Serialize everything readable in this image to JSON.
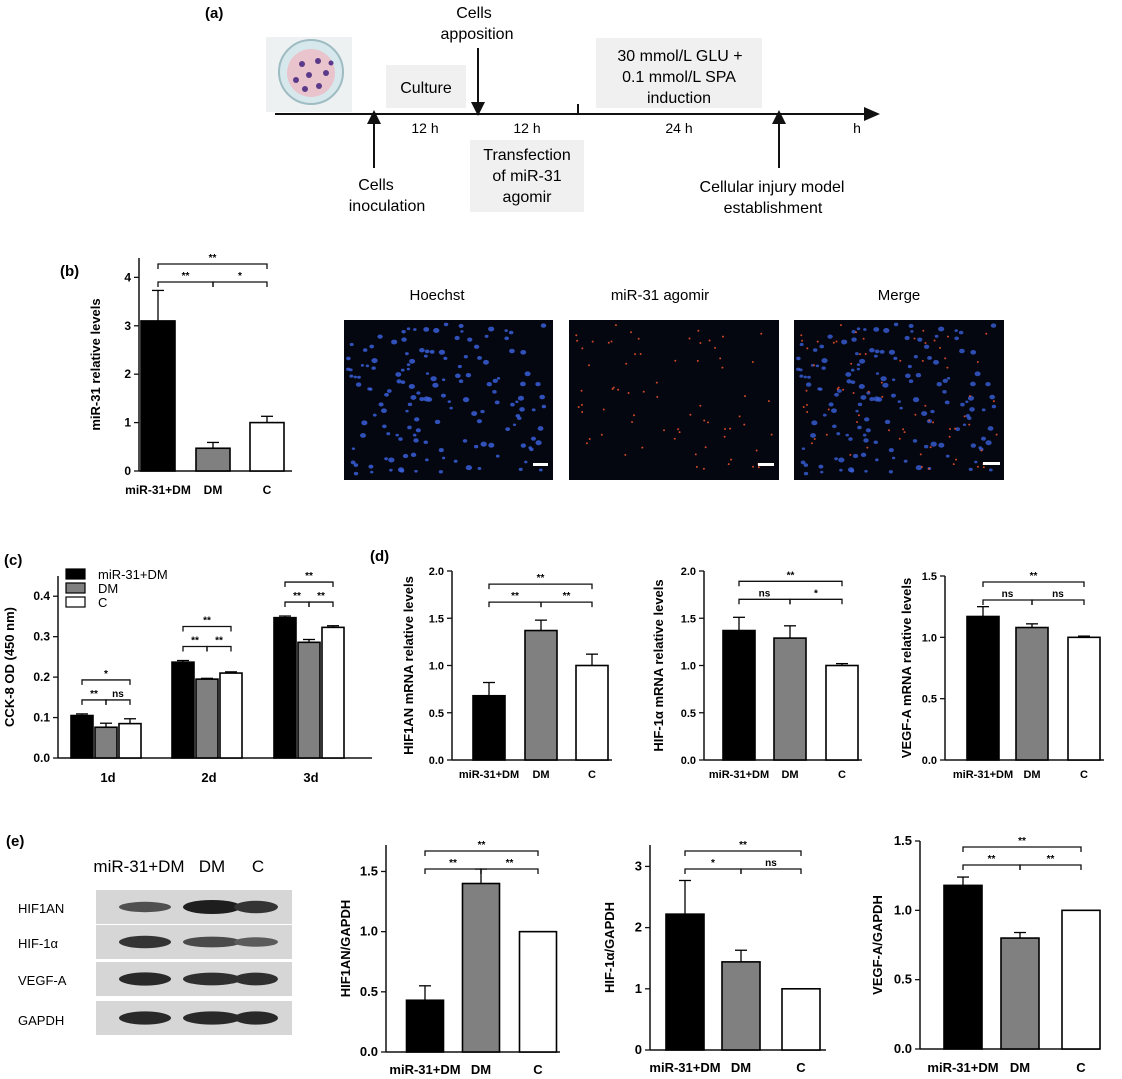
{
  "panel_labels": {
    "a": "(a)",
    "b": "(b)",
    "c": "(c)",
    "d": "(d)",
    "e": "(e)"
  },
  "timeline": {
    "culture": "Culture",
    "cells_apposition": [
      "Cells",
      "apposition"
    ],
    "induction": [
      "30 mmol/L GLU +",
      "0.1 mmol/L SPA",
      "induction"
    ],
    "transfection": [
      "Transfection",
      "of miR-31",
      "agomir"
    ],
    "cells_inoculation": [
      "Cells",
      "inoculation"
    ],
    "injury_model": [
      "Cellular injury model",
      "establishment"
    ],
    "durations": [
      "12 h",
      "12 h",
      "24 h"
    ],
    "unit": "h"
  },
  "images": {
    "titles": [
      "Hoechst",
      "miR-31 agomir",
      "Merge"
    ],
    "colors": {
      "nucleus": "#3a5fd8",
      "agomir": "#e2502a",
      "background": "#040610"
    }
  },
  "western_blot": {
    "lanes": [
      "miR-31+DM",
      "DM",
      "C"
    ],
    "rows": [
      {
        "label": "HIF1AN",
        "intensity": [
          0.55,
          1.0,
          0.8
        ]
      },
      {
        "label": "HIF-1α",
        "intensity": [
          0.8,
          0.6,
          0.45
        ]
      },
      {
        "label": "VEGF-A",
        "intensity": [
          0.9,
          0.85,
          0.85
        ]
      },
      {
        "label": "GAPDH",
        "intensity": [
          0.9,
          0.9,
          0.9
        ]
      }
    ]
  },
  "colors": {
    "bar_black": "#000000",
    "bar_gray": "#808080",
    "bar_white": "#ffffff",
    "axis": "#111111"
  },
  "chart_data": [
    {
      "id": "b",
      "type": "bar",
      "title": "",
      "ylabel": "miR-31 relative levels",
      "categories": [
        "miR-31+DM",
        "DM",
        "C"
      ],
      "values": [
        3.1,
        0.47,
        1.0
      ],
      "errors": [
        0.63,
        0.12,
        0.13
      ],
      "ylim": [
        0,
        4.4
      ],
      "yticks": [
        0,
        1,
        2,
        3,
        4
      ],
      "brackets": [
        {
          "from": 0,
          "to": 1,
          "level": 0,
          "label": "**"
        },
        {
          "from": 1,
          "to": 2,
          "level": 0,
          "label": "*"
        },
        {
          "from": 0,
          "to": 2,
          "level": 1,
          "label": "**"
        }
      ]
    },
    {
      "id": "c",
      "type": "bar",
      "title": "",
      "ylabel": "CCK-8 OD (450 nm)",
      "xlabel": "",
      "groups": [
        "1d",
        "2d",
        "3d"
      ],
      "series": [
        {
          "name": "miR-31+DM",
          "values": [
            0.105,
            0.237,
            0.347
          ],
          "errors": [
            0.004,
            0.004,
            0.004
          ]
        },
        {
          "name": "DM",
          "values": [
            0.076,
            0.195,
            0.286
          ],
          "errors": [
            0.01,
            0.002,
            0.007
          ]
        },
        {
          "name": "C",
          "values": [
            0.085,
            0.21,
            0.323
          ],
          "errors": [
            0.012,
            0.003,
            0.004
          ]
        }
      ],
      "ylim": [
        0,
        0.45
      ],
      "yticks": [
        0,
        0.1,
        0.2,
        0.3,
        0.4
      ],
      "brackets": [
        [
          {
            "from": 0,
            "to": 1,
            "level": 0,
            "label": "**"
          },
          {
            "from": 1,
            "to": 2,
            "level": 0,
            "label": "ns"
          },
          {
            "from": 0,
            "to": 2,
            "level": 1,
            "label": "*"
          }
        ],
        [
          {
            "from": 0,
            "to": 1,
            "level": 0,
            "label": "**"
          },
          {
            "from": 1,
            "to": 2,
            "level": 0,
            "label": "**"
          },
          {
            "from": 0,
            "to": 2,
            "level": 1,
            "label": "**"
          }
        ],
        [
          {
            "from": 0,
            "to": 1,
            "level": 0,
            "label": "**"
          },
          {
            "from": 1,
            "to": 2,
            "level": 0,
            "label": "**"
          },
          {
            "from": 0,
            "to": 2,
            "level": 1,
            "label": "**"
          }
        ]
      ]
    },
    {
      "id": "d1",
      "type": "bar",
      "ylabel": "HIF1AN mRNA relative levels",
      "categories": [
        "miR-31+DM",
        "DM",
        "C"
      ],
      "values": [
        0.68,
        1.37,
        1.0
      ],
      "errors": [
        0.14,
        0.11,
        0.12
      ],
      "ylim": [
        0,
        2.0
      ],
      "yticks": [
        0.0,
        0.5,
        1.0,
        1.5,
        2.0
      ],
      "brackets": [
        {
          "from": 0,
          "to": 1,
          "level": 0,
          "label": "**"
        },
        {
          "from": 1,
          "to": 2,
          "level": 0,
          "label": "**"
        },
        {
          "from": 0,
          "to": 2,
          "level": 1,
          "label": "**"
        }
      ]
    },
    {
      "id": "d2",
      "type": "bar",
      "ylabel": "HIF-1α mRNA relative levels",
      "categories": [
        "miR-31+DM",
        "DM",
        "C"
      ],
      "values": [
        1.37,
        1.29,
        1.0
      ],
      "errors": [
        0.14,
        0.13,
        0.02
      ],
      "ylim": [
        0,
        2.0
      ],
      "yticks": [
        0.0,
        0.5,
        1.0,
        1.5,
        2.0
      ],
      "brackets": [
        {
          "from": 0,
          "to": 1,
          "level": 0,
          "label": "ns"
        },
        {
          "from": 1,
          "to": 2,
          "level": 0,
          "label": "*"
        },
        {
          "from": 0,
          "to": 2,
          "level": 1,
          "label": "**"
        }
      ]
    },
    {
      "id": "d3",
      "type": "bar",
      "ylabel": "VEGF-A mRNA relative levels",
      "categories": [
        "miR-31+DM",
        "DM",
        "C"
      ],
      "values": [
        1.17,
        1.08,
        1.0
      ],
      "errors": [
        0.08,
        0.03,
        0.01
      ],
      "ylim": [
        0,
        1.5
      ],
      "yticks": [
        0.0,
        0.5,
        1.0,
        1.5
      ],
      "brackets": [
        {
          "from": 0,
          "to": 1,
          "level": 0,
          "label": "ns"
        },
        {
          "from": 1,
          "to": 2,
          "level": 0,
          "label": "ns"
        },
        {
          "from": 0,
          "to": 2,
          "level": 1,
          "label": "**"
        }
      ]
    },
    {
      "id": "e1",
      "type": "bar",
      "ylabel": "HIF1AN/GAPDH",
      "categories": [
        "miR-31+DM",
        "DM",
        "C"
      ],
      "values": [
        0.43,
        1.4,
        1.0
      ],
      "errors": [
        0.12,
        0.12,
        0.0
      ],
      "ylim": [
        0,
        1.72
      ],
      "yticks": [
        0.0,
        0.5,
        1.0,
        1.5
      ],
      "brackets": [
        {
          "from": 0,
          "to": 1,
          "level": 0,
          "label": "**"
        },
        {
          "from": 1,
          "to": 2,
          "level": 0,
          "label": "**"
        },
        {
          "from": 0,
          "to": 2,
          "level": 1,
          "label": "**"
        }
      ]
    },
    {
      "id": "e2",
      "type": "bar",
      "ylabel": "HIF-1α/GAPDH",
      "categories": [
        "miR-31+DM",
        "DM",
        "C"
      ],
      "values": [
        2.22,
        1.44,
        1.0
      ],
      "errors": [
        0.55,
        0.19,
        0.0
      ],
      "ylim": [
        0,
        3.35
      ],
      "yticks": [
        0,
        1,
        2,
        3
      ],
      "brackets": [
        {
          "from": 0,
          "to": 1,
          "level": 0,
          "label": "*"
        },
        {
          "from": 1,
          "to": 2,
          "level": 0,
          "label": "ns"
        },
        {
          "from": 0,
          "to": 2,
          "level": 1,
          "label": "**"
        }
      ]
    },
    {
      "id": "e3",
      "type": "bar",
      "ylabel": "VEGF-A/GAPDH",
      "categories": [
        "miR-31+DM",
        "DM",
        "C"
      ],
      "values": [
        1.18,
        0.8,
        1.0
      ],
      "errors": [
        0.06,
        0.04,
        0.0
      ],
      "ylim": [
        0,
        1.5
      ],
      "yticks": [
        0.0,
        0.5,
        1.0,
        1.5
      ],
      "brackets": [
        {
          "from": 0,
          "to": 1,
          "level": 0,
          "label": "**"
        },
        {
          "from": 1,
          "to": 2,
          "level": 0,
          "label": "**"
        },
        {
          "from": 0,
          "to": 2,
          "level": 1,
          "label": "**"
        }
      ]
    }
  ]
}
